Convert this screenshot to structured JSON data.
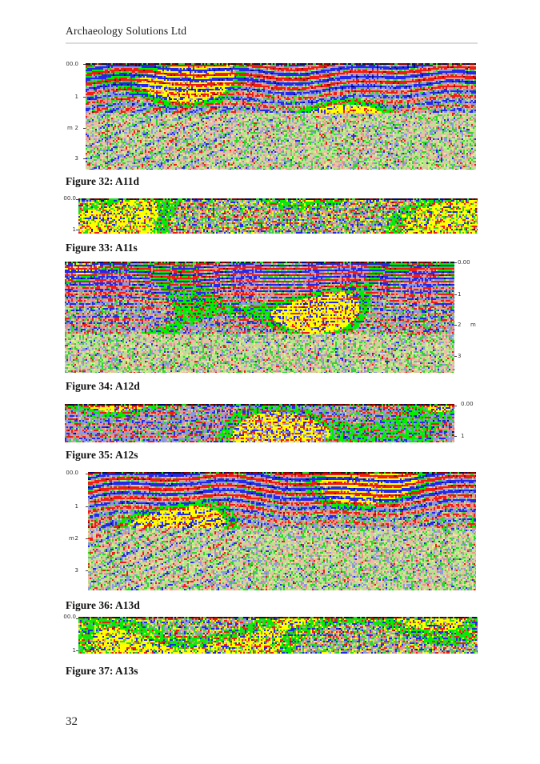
{
  "header": {
    "title": "Archaeology Solutions Ltd"
  },
  "page_number": "32",
  "palette": {
    "red": "#f01c14",
    "dark_red": "#8c0400",
    "salmon": "#f09488",
    "blue": "#2428e8",
    "dark_blue": "#000878",
    "pale_blue": "#8c98e4",
    "green": "#28d828",
    "bright_green": "#00ee00",
    "pale_green": "#b4e88c",
    "yellow": "#ffff00",
    "pale_yellow": "#e8ee8c",
    "pale_pink": "#f0b8ac",
    "black": "#141414"
  },
  "figures": [
    {
      "caption": "Figure 32: A11d",
      "axis_side": "left",
      "unit": "m",
      "ticks": [
        "00.0",
        "1",
        "2",
        "3"
      ]
    },
    {
      "caption": "Figure 33: A11s",
      "axis_side": "left",
      "unit": "",
      "ticks": [
        "00.0",
        "1"
      ]
    },
    {
      "caption": "Figure 34: A12d",
      "axis_side": "right",
      "unit": "m",
      "ticks": [
        "0.00",
        "1",
        "2",
        "3"
      ]
    },
    {
      "caption": "Figure 35: A12s",
      "axis_side": "right",
      "unit": "",
      "ticks": [
        "0.00",
        "1"
      ]
    },
    {
      "caption": "Figure 36: A13d",
      "axis_side": "left",
      "unit": "m",
      "ticks": [
        "00.0",
        "1",
        "2",
        "3"
      ]
    },
    {
      "caption": "Figure 37: A13s",
      "axis_side": "left",
      "unit": "",
      "ticks": [
        "00.0",
        "1"
      ]
    }
  ]
}
